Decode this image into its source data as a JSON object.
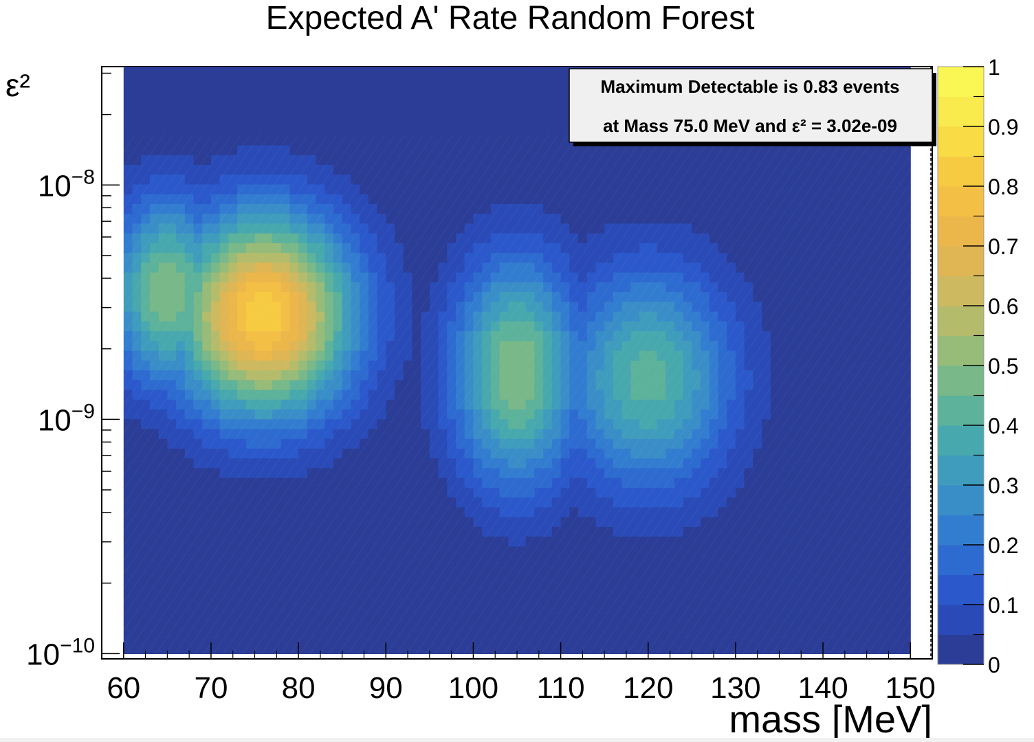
{
  "chart_data": {
    "type": "heatmap",
    "title": "Expected A' Rate Random Forest",
    "xlabel": "mass [MeV]",
    "ylabel": "ε²",
    "x_range": [
      57.5,
      152.5
    ],
    "y_range": [
      9.5e-11,
      3.2e-08
    ],
    "y_scale": "log",
    "x_ticks": [
      60,
      70,
      80,
      90,
      100,
      110,
      120,
      130,
      140,
      150
    ],
    "y_tick_labels": [
      {
        "base": "10",
        "exp": "−8",
        "value": 1e-08
      },
      {
        "base": "10",
        "exp": "−9",
        "value": 1e-09
      },
      {
        "base": "10",
        "exp": "−10",
        "value": 1e-10
      }
    ],
    "colorbar": {
      "min": 0,
      "max": 1,
      "ticks": [
        "0",
        "0.1",
        "0.2",
        "0.3",
        "0.4",
        "0.5",
        "0.6",
        "0.7",
        "0.8",
        "0.9",
        "1"
      ],
      "colors": [
        "#2b3d96",
        "#2a4bb7",
        "#2b59cb",
        "#2e6bd0",
        "#337dd0",
        "#3a8ec8",
        "#3f9cbd",
        "#47a9ae",
        "#5cb29b",
        "#78b889",
        "#97bb78",
        "#b4bc6b",
        "#cdb95f",
        "#e0b553",
        "#ecb74a",
        "#f3bf45",
        "#f6cb42",
        "#f8db45",
        "#f9ea4d",
        "#faf653"
      ]
    },
    "grid": true,
    "legend": "top-right",
    "peaks": [
      {
        "mass": 65,
        "eps2": 3.5e-09,
        "value": 0.5
      },
      {
        "mass": 76,
        "eps2": 2.8e-09,
        "value": 0.83
      },
      {
        "mass": 105,
        "eps2": 1.6e-09,
        "value": 0.5
      },
      {
        "mass": 120,
        "eps2": 1.5e-09,
        "value": 0.42
      }
    ],
    "info_box": {
      "line1": "Maximum Detectable is 0.83 events",
      "line2_prefix": "at Mass 75.0 MeV and ",
      "line2_symbol": "ε²",
      "line2_suffix": " = 3.02e-09"
    }
  }
}
